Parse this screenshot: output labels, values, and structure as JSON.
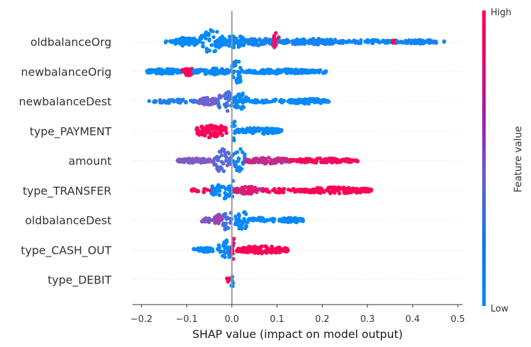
{
  "chart_data": {
    "type": "scatter",
    "subtype": "shap-beeswarm",
    "title": "",
    "xlabel": "SHAP value (impact on model output)",
    "ylabel": "",
    "xlim": [
      -0.22,
      0.5
    ],
    "x_ticks": [
      -0.2,
      -0.1,
      0.0,
      0.1,
      0.2,
      0.3,
      0.4,
      0.5
    ],
    "x_tick_labels": [
      "−0.2",
      "−0.1",
      "0.0",
      "0.1",
      "0.2",
      "0.3",
      "0.4",
      "0.5"
    ],
    "zero_line": 0.0,
    "grid": false,
    "colorbar": {
      "title": "Feature value",
      "high_label": "High",
      "low_label": "Low",
      "low_color": "#008bfb",
      "mid_color": "#7d5cc8",
      "high_color": "#ff0052",
      "placement": "right"
    },
    "features": [
      {
        "name": "oldbalanceOrg",
        "segments": [
          {
            "from": -0.15,
            "to": -0.13,
            "feature_value": 0.0,
            "spread": 0.1,
            "density": 0.3
          },
          {
            "from": -0.13,
            "to": -0.07,
            "feature_value": 0.0,
            "spread": 0.35,
            "density": 1.0
          },
          {
            "from": -0.07,
            "to": -0.02,
            "feature_value": 0.0,
            "spread": 1.0,
            "density": 1.0
          },
          {
            "from": -0.02,
            "to": 0.03,
            "feature_value": 0.02,
            "spread": 0.55,
            "density": 1.0
          },
          {
            "from": 0.03,
            "to": 0.09,
            "feature_value": 0.05,
            "spread": 0.3,
            "density": 1.0
          },
          {
            "from": 0.09,
            "to": 0.105,
            "feature_value": 0.9,
            "spread": 0.75,
            "density": 1.0
          },
          {
            "from": 0.105,
            "to": 0.25,
            "feature_value": 0.08,
            "spread": 0.25,
            "density": 0.8
          },
          {
            "from": 0.25,
            "to": 0.36,
            "feature_value": 0.05,
            "spread": 0.15,
            "density": 0.5
          },
          {
            "from": 0.355,
            "to": 0.365,
            "feature_value": 0.95,
            "spread": 0.15,
            "density": 1.0
          },
          {
            "from": 0.365,
            "to": 0.47,
            "feature_value": 0.08,
            "spread": 0.15,
            "density": 0.6
          }
        ]
      },
      {
        "name": "newbalanceOrig",
        "segments": [
          {
            "from": -0.19,
            "to": -0.11,
            "feature_value": 0.0,
            "spread": 0.2,
            "density": 1.0
          },
          {
            "from": -0.11,
            "to": -0.085,
            "feature_value": 0.95,
            "spread": 0.35,
            "density": 1.0
          },
          {
            "from": -0.085,
            "to": 0.0,
            "feature_value": 0.05,
            "spread": 0.25,
            "density": 1.0
          },
          {
            "from": 0.0,
            "to": 0.025,
            "feature_value": 0.0,
            "spread": 1.0,
            "density": 1.0
          },
          {
            "from": 0.025,
            "to": 0.19,
            "feature_value": 0.0,
            "spread": 0.18,
            "density": 1.0
          },
          {
            "from": 0.19,
            "to": 0.21,
            "feature_value": 0.0,
            "spread": 0.15,
            "density": 0.4
          }
        ]
      },
      {
        "name": "newbalanceDest",
        "segments": [
          {
            "from": -0.185,
            "to": -0.08,
            "feature_value": 0.15,
            "spread": 0.15,
            "density": 0.45
          },
          {
            "from": -0.08,
            "to": -0.03,
            "feature_value": 0.45,
            "spread": 0.3,
            "density": 0.9
          },
          {
            "from": -0.03,
            "to": 0.0,
            "feature_value": 0.3,
            "spread": 1.0,
            "density": 1.0
          },
          {
            "from": 0.0,
            "to": 0.04,
            "feature_value": 0.0,
            "spread": 0.65,
            "density": 1.0
          },
          {
            "from": 0.04,
            "to": 0.12,
            "feature_value": 0.0,
            "spread": 0.18,
            "density": 0.45
          },
          {
            "from": 0.12,
            "to": 0.215,
            "feature_value": 0.0,
            "spread": 0.2,
            "density": 1.0
          }
        ]
      },
      {
        "name": "type_PAYMENT",
        "segments": [
          {
            "from": -0.08,
            "to": -0.01,
            "feature_value": 1.0,
            "spread": 0.55,
            "density": 1.0
          },
          {
            "from": 0.0,
            "to": 0.01,
            "feature_value": 0.0,
            "spread": 1.0,
            "density": 1.0
          },
          {
            "from": 0.01,
            "to": 0.11,
            "feature_value": 0.0,
            "spread": 0.25,
            "density": 0.9
          }
        ]
      },
      {
        "name": "amount",
        "segments": [
          {
            "from": -0.12,
            "to": -0.04,
            "feature_value": 0.5,
            "spread": 0.2,
            "density": 0.9
          },
          {
            "from": -0.04,
            "to": 0.0,
            "feature_value": 0.35,
            "spread": 1.0,
            "density": 1.0
          },
          {
            "from": 0.0,
            "to": 0.03,
            "feature_value": 0.05,
            "spread": 1.0,
            "density": 1.0
          },
          {
            "from": 0.03,
            "to": 0.13,
            "feature_value": 0.75,
            "spread": 0.25,
            "density": 1.0
          },
          {
            "from": 0.13,
            "to": 0.28,
            "feature_value": 0.95,
            "spread": 0.2,
            "density": 0.75
          }
        ]
      },
      {
        "name": "type_TRANSFER",
        "segments": [
          {
            "from": -0.09,
            "to": -0.045,
            "feature_value": 1.0,
            "spread": 0.2,
            "density": 0.35
          },
          {
            "from": -0.045,
            "to": 0.0,
            "feature_value": 0.0,
            "spread": 0.7,
            "density": 1.0
          },
          {
            "from": 0.0,
            "to": 0.005,
            "feature_value": 0.0,
            "spread": 1.0,
            "density": 1.0
          },
          {
            "from": 0.005,
            "to": 0.07,
            "feature_value": 0.85,
            "spread": 0.3,
            "density": 1.0
          },
          {
            "from": 0.07,
            "to": 0.15,
            "feature_value": 1.0,
            "spread": 0.2,
            "density": 0.4
          },
          {
            "from": 0.15,
            "to": 0.31,
            "feature_value": 1.0,
            "spread": 0.25,
            "density": 0.85
          }
        ]
      },
      {
        "name": "oldbalanceDest",
        "segments": [
          {
            "from": -0.07,
            "to": -0.04,
            "feature_value": 0.5,
            "spread": 0.2,
            "density": 0.7
          },
          {
            "from": -0.04,
            "to": -0.02,
            "feature_value": 0.65,
            "spread": 0.45,
            "density": 1.0
          },
          {
            "from": -0.02,
            "to": 0.0,
            "feature_value": 0.25,
            "spread": 1.0,
            "density": 1.0
          },
          {
            "from": 0.005,
            "to": 0.035,
            "feature_value": 0.0,
            "spread": 0.95,
            "density": 1.0
          },
          {
            "from": 0.035,
            "to": 0.08,
            "feature_value": 0.0,
            "spread": 0.2,
            "density": 0.6
          },
          {
            "from": 0.085,
            "to": 0.1,
            "feature_value": 0.0,
            "spread": 0.15,
            "density": 0.5
          },
          {
            "from": 0.105,
            "to": 0.16,
            "feature_value": 0.0,
            "spread": 0.2,
            "density": 1.0
          }
        ]
      },
      {
        "name": "type_CASH_OUT",
        "segments": [
          {
            "from": -0.085,
            "to": -0.03,
            "feature_value": 0.0,
            "spread": 0.18,
            "density": 0.8
          },
          {
            "from": -0.03,
            "to": 0.0,
            "feature_value": 0.0,
            "spread": 0.85,
            "density": 1.0
          },
          {
            "from": 0.0,
            "to": 0.01,
            "feature_value": 1.0,
            "spread": 1.0,
            "density": 1.0
          },
          {
            "from": 0.01,
            "to": 0.125,
            "feature_value": 1.0,
            "spread": 0.3,
            "density": 1.0
          }
        ]
      },
      {
        "name": "type_DEBIT",
        "segments": [
          {
            "from": -0.012,
            "to": -0.004,
            "feature_value": 1.0,
            "spread": 0.2,
            "density": 1.0
          },
          {
            "from": -0.002,
            "to": 0.004,
            "feature_value": 0.0,
            "spread": 1.0,
            "density": 1.0
          }
        ]
      }
    ]
  }
}
